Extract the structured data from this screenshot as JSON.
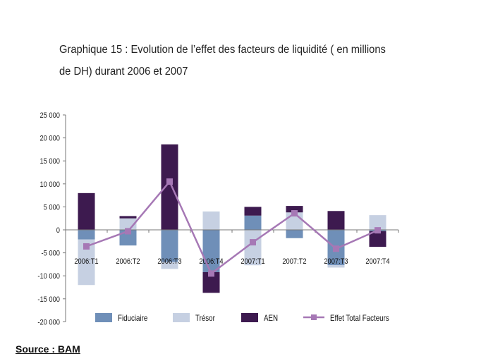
{
  "title": "Graphique 15 : Evolution de l’effet des facteurs de liquidité ( en millions de DH) durant 2006 et 2007",
  "source": "Source : BAM",
  "chart_data": {
    "type": "bar",
    "stacked": true,
    "categories": [
      "2006:T1",
      "2006:T2",
      "2006:T3",
      "2006:T4",
      "2007:T1",
      "2007:T2",
      "2007:T3",
      "2007:T4"
    ],
    "series": [
      {
        "name": "Fiduciaire",
        "type": "bar",
        "color": "#6f8fb8",
        "values": [
          -2100,
          -3400,
          -7000,
          -9200,
          3100,
          -1800,
          -7700,
          -300
        ]
      },
      {
        "name": "Trésor",
        "type": "bar",
        "color": "#c6d0e2",
        "values": [
          -9900,
          2500,
          -1500,
          4000,
          -7700,
          3800,
          -500,
          3200
        ]
      },
      {
        "name": "AEN",
        "type": "bar",
        "color": "#3d1a4f",
        "values": [
          8000,
          500,
          18600,
          -4500,
          1900,
          1400,
          4100,
          -3400
        ]
      },
      {
        "name": "Effet Total Facteurs",
        "type": "line",
        "color": "#a678b5",
        "values": [
          -3600,
          -300,
          10500,
          -9500,
          -2700,
          3600,
          -4100,
          -100
        ]
      }
    ],
    "yticks": [
      "25 000",
      "20 000",
      "15 000",
      "10 000",
      "5 000",
      "0",
      "-5 000",
      "-10 000",
      "-15 000",
      "-20 000"
    ],
    "ylim": [
      -20000,
      25000
    ],
    "legend": "bottom"
  }
}
